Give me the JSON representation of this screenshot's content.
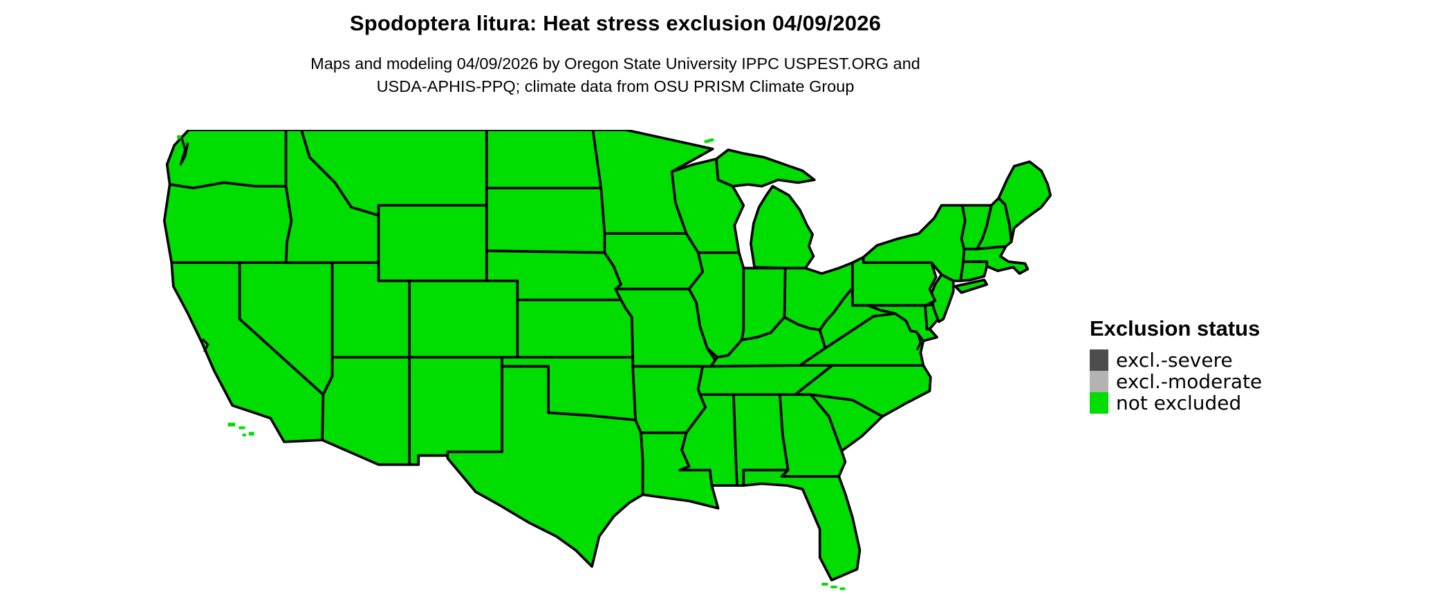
{
  "title": "Spodoptera litura: Heat stress exclusion 04/09/2026",
  "subtitle_line1": "Maps and modeling 04/09/2026 by Oregon State University IPPC USPEST.ORG and",
  "subtitle_line2": "USDA-APHIS-PPQ; climate data from OSU PRISM Climate Group",
  "legend": {
    "heading": "Exclusion status",
    "entries": [
      {
        "label": "excl.-severe",
        "color": "#4d4d4d"
      },
      {
        "label": "excl.-moderate",
        "color": "#b3b3b3"
      },
      {
        "label": "not excluded",
        "color": "#00dd00"
      }
    ]
  },
  "map": {
    "region": "Conterminous United States",
    "fill_color": "#00dd00",
    "border_color": "#000000",
    "background_color": "#ffffff",
    "all_states_status": "not excluded",
    "states": [
      "Washington",
      "Oregon",
      "California",
      "Nevada",
      "Idaho",
      "Montana",
      "Wyoming",
      "Utah",
      "Colorado",
      "Arizona",
      "New Mexico",
      "North Dakota",
      "South Dakota",
      "Nebraska",
      "Kansas",
      "Oklahoma",
      "Texas",
      "Minnesota",
      "Iowa",
      "Missouri",
      "Arkansas",
      "Louisiana",
      "Wisconsin",
      "Illinois",
      "Michigan",
      "Indiana",
      "Ohio",
      "Kentucky",
      "Tennessee",
      "Mississippi",
      "Alabama",
      "Georgia",
      "Florida",
      "South Carolina",
      "North Carolina",
      "Virginia",
      "West Virginia",
      "Maryland",
      "Delaware",
      "New Jersey",
      "Pennsylvania",
      "New York",
      "Connecticut",
      "Rhode Island",
      "Massachusetts",
      "Vermont",
      "New Hampshire",
      "Maine"
    ]
  }
}
